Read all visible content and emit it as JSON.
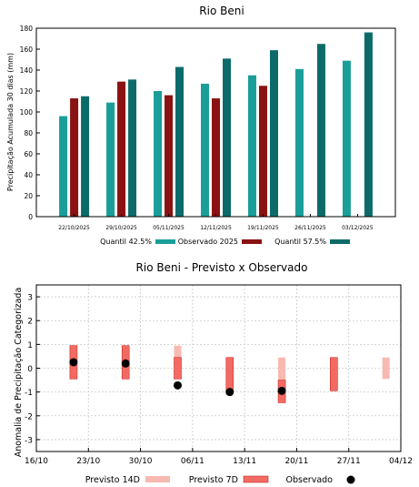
{
  "chart_data": [
    {
      "type": "bar",
      "title": "Rio Beni",
      "ylabel": "Precipitação Acumulada 30 dias (mm)",
      "xlabel": "",
      "ylim": [
        0,
        180
      ],
      "yticks": [
        0,
        20,
        40,
        60,
        80,
        100,
        120,
        140,
        160,
        180
      ],
      "categories": [
        "22/10/2025",
        "29/10/2025",
        "05/11/2025",
        "12/11/2025",
        "19/11/2025",
        "26/11/2025",
        "03/12/2025"
      ],
      "series": [
        {
          "name": "Quantil 42.5%",
          "color": "#1a9e9a",
          "values": [
            96,
            109,
            120,
            127,
            135,
            141,
            149
          ]
        },
        {
          "name": "Observado 2025",
          "color": "#8b1212",
          "values": [
            113,
            129,
            116,
            113,
            125,
            null,
            null
          ]
        },
        {
          "name": "Quantil 57.5%",
          "color": "#0c6b68",
          "values": [
            115,
            131,
            143,
            151,
            159,
            165,
            176
          ]
        }
      ],
      "legend": "bottom",
      "grid": false
    },
    {
      "type": "range",
      "title": "Rio Beni - Previsto x Observado",
      "ylabel": "Anomalia de Precipitação Categorizada",
      "xlabel": "",
      "ylim": [
        -3.5,
        3.5
      ],
      "yticks": [
        -3,
        -2,
        -1,
        0,
        1,
        2,
        3
      ],
      "xlim": [
        "2025-10-16",
        "2025-12-04"
      ],
      "xticks": [
        "16/10",
        "23/10",
        "30/10",
        "06/11",
        "13/11",
        "20/11",
        "27/11",
        "04/12"
      ],
      "grid": true,
      "legend": "bottom",
      "previsto_14d": {
        "name": "Previsto 14D",
        "color": "#f7b9b0",
        "ranges": [
          {
            "date": "2025-10-21",
            "low": -0.45,
            "high": 0.95
          },
          {
            "date": "2025-10-28",
            "low": -0.45,
            "high": 0.95
          },
          {
            "date": "2025-11-04",
            "low": -0.45,
            "high": 0.95
          },
          {
            "date": "2025-11-11",
            "low": -0.95,
            "high": 0.45
          },
          {
            "date": "2025-11-18",
            "low": -1.45,
            "high": 0.45
          },
          {
            "date": "2025-11-25",
            "low": -0.95,
            "high": 0.45
          },
          {
            "date": "2025-12-02",
            "low": -0.45,
            "high": 0.45
          }
        ]
      },
      "previsto_7d": {
        "name": "Previsto 7D",
        "color": "#f26b63",
        "ranges": [
          {
            "date": "2025-10-21",
            "low": -0.45,
            "high": 0.95
          },
          {
            "date": "2025-10-28",
            "low": -0.45,
            "high": 0.95
          },
          {
            "date": "2025-11-04",
            "low": -0.45,
            "high": 0.45
          },
          {
            "date": "2025-11-11",
            "low": -0.95,
            "high": 0.45
          },
          {
            "date": "2025-11-18",
            "low": -1.45,
            "high": -0.5
          },
          {
            "date": "2025-11-25",
            "low": -0.95,
            "high": 0.45
          }
        ]
      },
      "observado": {
        "name": "Observado",
        "color": "#000000",
        "points": [
          {
            "date": "2025-10-21",
            "value": 0.25
          },
          {
            "date": "2025-10-28",
            "value": 0.2
          },
          {
            "date": "2025-11-04",
            "value": -0.72
          },
          {
            "date": "2025-11-11",
            "value": -1.0
          },
          {
            "date": "2025-11-18",
            "value": -0.95
          }
        ]
      }
    }
  ]
}
